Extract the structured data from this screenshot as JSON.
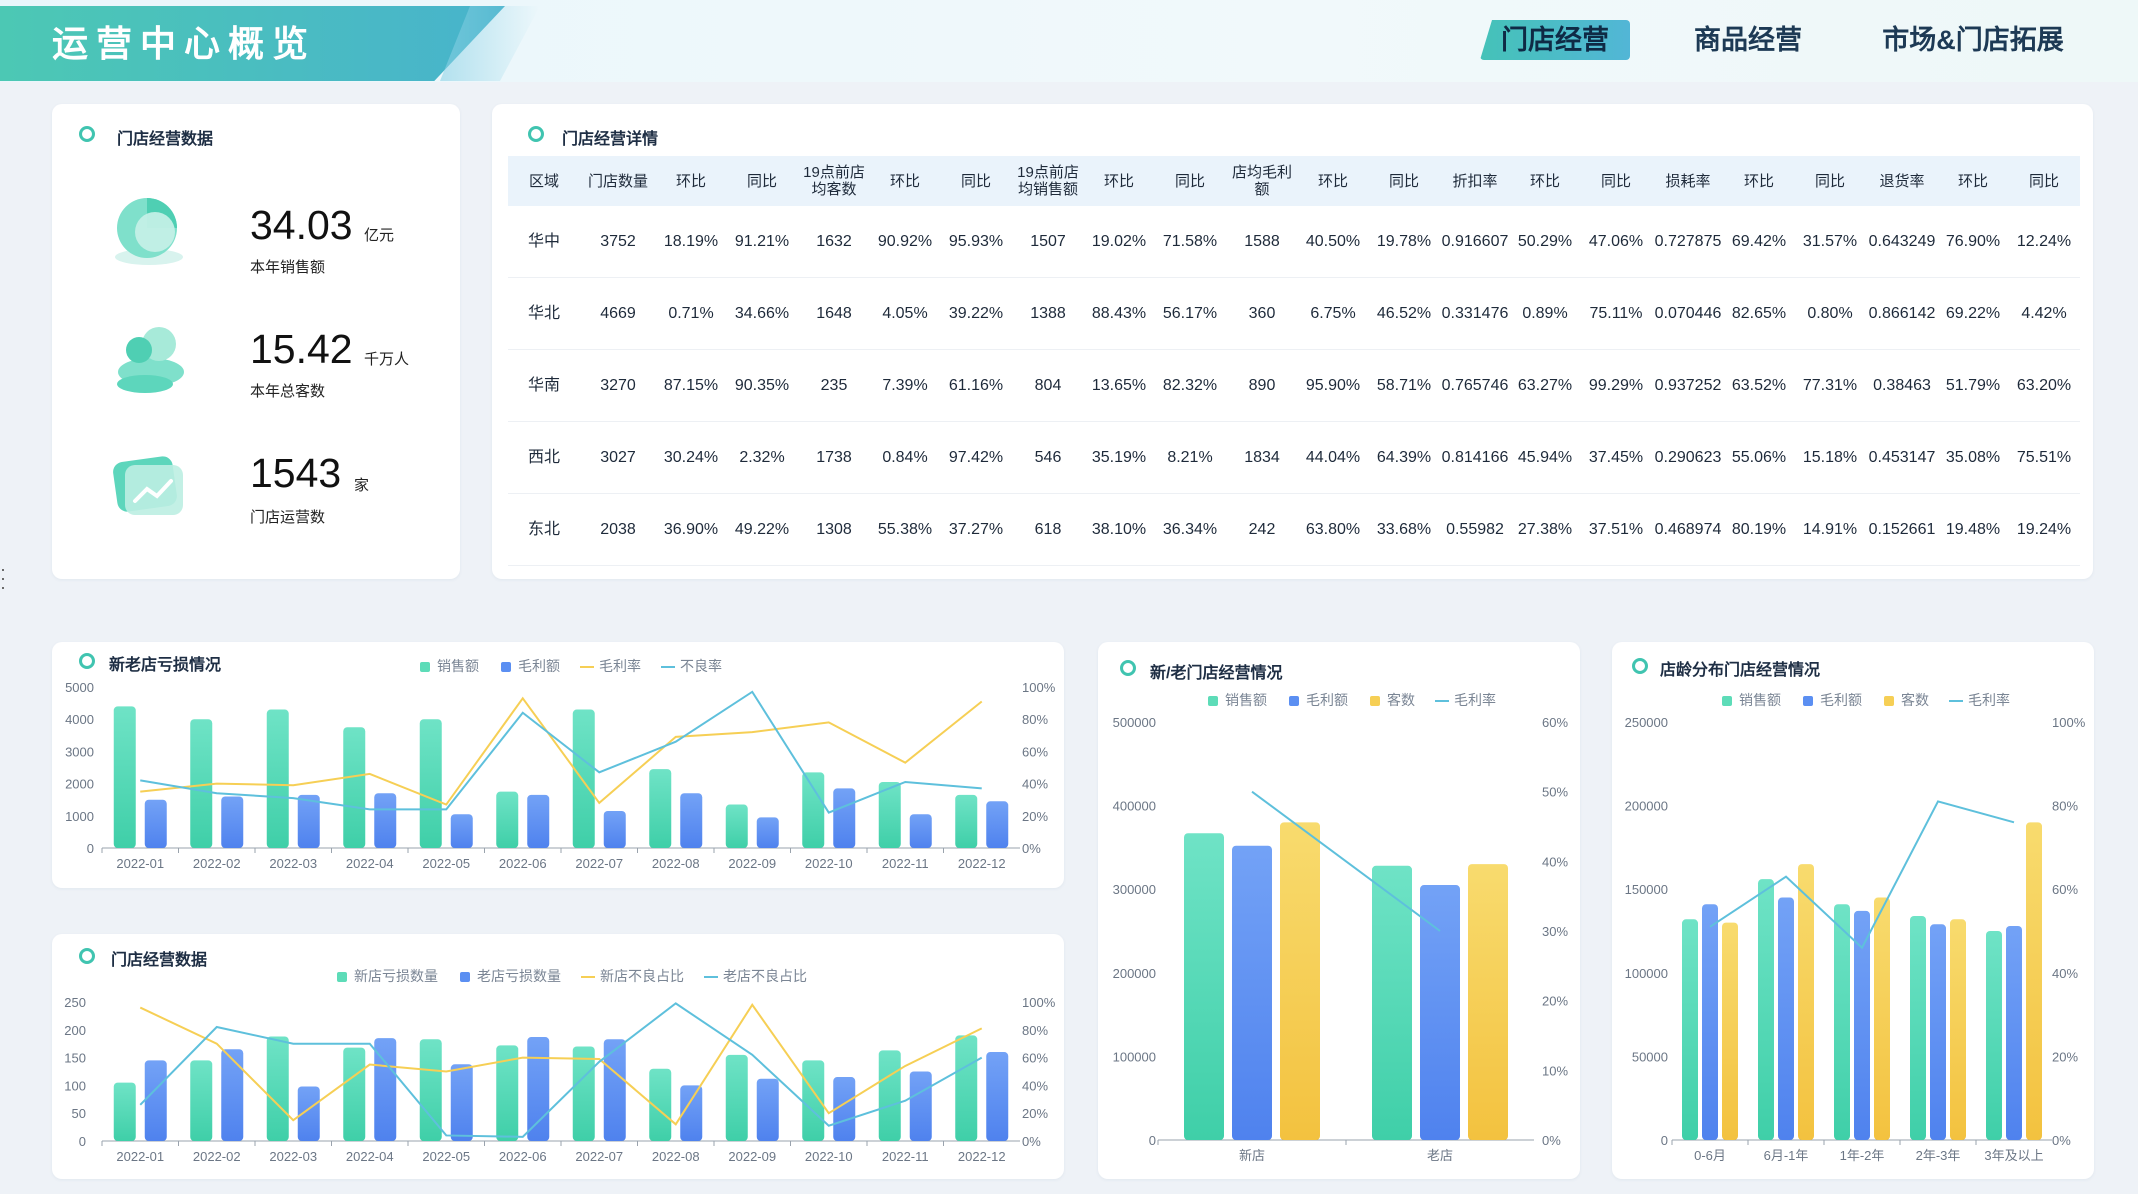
{
  "header": {
    "title": "运营中心概览",
    "tabs": [
      {
        "label": "门店经营",
        "active": true
      },
      {
        "label": "商品经营",
        "active": false
      },
      {
        "label": "市场&门店拓展",
        "active": false
      }
    ]
  },
  "kpi_card": {
    "title": "门店经营数据",
    "items": [
      {
        "value": "34.03",
        "unit": "亿元",
        "label": "本年销售额",
        "icon": "pie-icon"
      },
      {
        "value": "15.42",
        "unit": "千万人",
        "label": "本年总客数",
        "icon": "users-icon"
      },
      {
        "value": "1543",
        "unit": "家",
        "label": "门店运营数",
        "icon": "trend-card-icon"
      }
    ]
  },
  "detail_table": {
    "title": "门店经营详情",
    "headers": [
      "区域",
      "门店数量",
      "环比",
      "同比",
      "19点前店均客数",
      "环比",
      "同比",
      "19点前店均销售额",
      "环比",
      "同比",
      "店均毛利额",
      "环比",
      "同比",
      "折扣率",
      "环比",
      "同比",
      "损耗率",
      "环比",
      "同比",
      "退货率",
      "环比",
      "同比"
    ],
    "rows": [
      [
        "华中",
        "3752",
        "18.19%",
        "91.21%",
        "1632",
        "90.92%",
        "95.93%",
        "1507",
        "19.02%",
        "71.58%",
        "1588",
        "40.50%",
        "19.78%",
        "0.916607",
        "50.29%",
        "47.06%",
        "0.727875",
        "69.42%",
        "31.57%",
        "0.643249",
        "76.90%",
        "12.24%"
      ],
      [
        "华北",
        "4669",
        "0.71%",
        "34.66%",
        "1648",
        "4.05%",
        "39.22%",
        "1388",
        "88.43%",
        "56.17%",
        "360",
        "6.75%",
        "46.52%",
        "0.331476",
        "0.89%",
        "75.11%",
        "0.070446",
        "82.65%",
        "0.80%",
        "0.866142",
        "69.22%",
        "4.42%"
      ],
      [
        "华南",
        "3270",
        "87.15%",
        "90.35%",
        "235",
        "7.39%",
        "61.16%",
        "804",
        "13.65%",
        "82.32%",
        "890",
        "95.90%",
        "58.71%",
        "0.765746",
        "63.27%",
        "99.29%",
        "0.937252",
        "63.52%",
        "77.31%",
        "0.38463",
        "51.79%",
        "63.20%"
      ],
      [
        "西北",
        "3027",
        "30.24%",
        "2.32%",
        "1738",
        "0.84%",
        "97.42%",
        "546",
        "35.19%",
        "8.21%",
        "1834",
        "44.04%",
        "64.39%",
        "0.814166",
        "45.94%",
        "37.45%",
        "0.290623",
        "55.06%",
        "15.18%",
        "0.453147",
        "35.08%",
        "75.51%"
      ],
      [
        "东北",
        "2038",
        "36.90%",
        "49.22%",
        "1308",
        "55.38%",
        "37.27%",
        "618",
        "38.10%",
        "36.34%",
        "242",
        "63.80%",
        "33.68%",
        "0.55982",
        "27.38%",
        "37.51%",
        "0.468974",
        "80.19%",
        "14.91%",
        "0.152661",
        "19.48%",
        "19.24%"
      ]
    ]
  },
  "colors": {
    "green": "#5ddcb8",
    "blue": "#5b8ff2",
    "yellow": "#f6cf55",
    "cyan": "#5ec0dc",
    "accent": "#40c4b0"
  },
  "chart_data": [
    {
      "id": "loss",
      "type": "bar",
      "title": "新老店亏损情况",
      "categories": [
        "2022-01",
        "2022-02",
        "2022-03",
        "2022-04",
        "2022-05",
        "2022-06",
        "2022-07",
        "2022-08",
        "2022-09",
        "2022-10",
        "2022-11",
        "2022-12"
      ],
      "yticks_left": [
        "5000",
        "4000",
        "3000",
        "2000",
        "1000",
        "0"
      ],
      "yticks_right": [
        "100%",
        "80%",
        "60%",
        "40%",
        "20%",
        "0%"
      ],
      "ylim": [
        0,
        5000
      ],
      "y2lim": [
        0,
        100
      ],
      "legend_position": "top-center",
      "series": [
        {
          "name": "销售额",
          "kind": "bar",
          "values": [
            4400,
            4000,
            4300,
            3750,
            4000,
            1750,
            4300,
            2450,
            1350,
            2350,
            2050,
            1650
          ]
        },
        {
          "name": "毛利额",
          "kind": "bar",
          "values": [
            1500,
            1600,
            1650,
            1700,
            1050,
            1650,
            1150,
            1700,
            950,
            1850,
            1050,
            1450
          ]
        },
        {
          "name": "毛利率",
          "kind": "line",
          "axis": "right",
          "values": [
            35,
            40,
            39,
            46,
            27,
            93,
            28,
            69,
            72,
            78,
            53,
            91
          ]
        },
        {
          "name": "不良率",
          "kind": "line",
          "axis": "right",
          "values": [
            42,
            34,
            31,
            24,
            24,
            84,
            47,
            66,
            97,
            22,
            41,
            37
          ]
        }
      ]
    },
    {
      "id": "ops",
      "type": "bar",
      "title": "门店经营数据",
      "categories": [
        "2022-01",
        "2022-02",
        "2022-03",
        "2022-04",
        "2022-05",
        "2022-06",
        "2022-07",
        "2022-08",
        "2022-09",
        "2022-10",
        "2022-11",
        "2022-12"
      ],
      "yticks_left": [
        "250",
        "200",
        "150",
        "100",
        "50",
        "0"
      ],
      "yticks_right": [
        "100%",
        "80%",
        "60%",
        "40%",
        "20%",
        "0%"
      ],
      "ylim": [
        0,
        250
      ],
      "y2lim": [
        0,
        100
      ],
      "legend_position": "top-center",
      "series": [
        {
          "name": "新店亏损数量",
          "kind": "bar",
          "values": [
            105,
            145,
            188,
            168,
            183,
            172,
            170,
            130,
            155,
            145,
            163,
            190
          ]
        },
        {
          "name": "老店亏损数量",
          "kind": "bar",
          "values": [
            145,
            165,
            98,
            185,
            138,
            187,
            183,
            100,
            112,
            115,
            125,
            160
          ]
        },
        {
          "name": "新店不良占比",
          "kind": "line",
          "axis": "right",
          "values": [
            96,
            70,
            15,
            55,
            50,
            60,
            59,
            12,
            98,
            20,
            54,
            81
          ]
        },
        {
          "name": "老店不良占比",
          "kind": "line",
          "axis": "right",
          "values": [
            26,
            82,
            70,
            70,
            4,
            3,
            57,
            99,
            62,
            11,
            29,
            60
          ]
        }
      ]
    },
    {
      "id": "newold",
      "type": "bar",
      "title": "新/老门店经营情况",
      "categories": [
        "新店",
        "老店"
      ],
      "yticks_left": [
        "500000",
        "400000",
        "300000",
        "200000",
        "100000",
        "0"
      ],
      "yticks_right": [
        "60%",
        "50%",
        "40%",
        "30%",
        "20%",
        "10%",
        "0%"
      ],
      "ylim": [
        0,
        500000
      ],
      "y2lim": [
        0,
        60
      ],
      "legend_position": "top-center",
      "series": [
        {
          "name": "销售额",
          "kind": "bar",
          "values": [
            367000,
            328000
          ]
        },
        {
          "name": "毛利额",
          "kind": "bar",
          "values": [
            352000,
            305000
          ]
        },
        {
          "name": "客数",
          "kind": "bar",
          "values": [
            380000,
            330000
          ]
        },
        {
          "name": "毛利率",
          "kind": "line",
          "axis": "right",
          "values": [
            50,
            30
          ]
        }
      ]
    },
    {
      "id": "age",
      "type": "bar",
      "title": "店龄分布门店经营情况",
      "categories": [
        "0-6月",
        "6月-1年",
        "1年-2年",
        "2年-3年",
        "3年及以上"
      ],
      "yticks_left": [
        "250000",
        "200000",
        "150000",
        "100000",
        "50000",
        "0"
      ],
      "yticks_right": [
        "100%",
        "80%",
        "60%",
        "40%",
        "20%",
        "0%"
      ],
      "ylim": [
        0,
        250000
      ],
      "y2lim": [
        0,
        100
      ],
      "legend_position": "top-center",
      "series": [
        {
          "name": "销售额",
          "kind": "bar",
          "values": [
            132000,
            156000,
            141000,
            134000,
            125000
          ]
        },
        {
          "name": "毛利额",
          "kind": "bar",
          "values": [
            141000,
            145000,
            137000,
            129000,
            128000
          ]
        },
        {
          "name": "客数",
          "kind": "bar",
          "values": [
            130000,
            165000,
            145000,
            132000,
            190000
          ]
        },
        {
          "name": "毛利率",
          "kind": "line",
          "axis": "right",
          "values": [
            51,
            63,
            46,
            81,
            76
          ]
        }
      ]
    }
  ]
}
